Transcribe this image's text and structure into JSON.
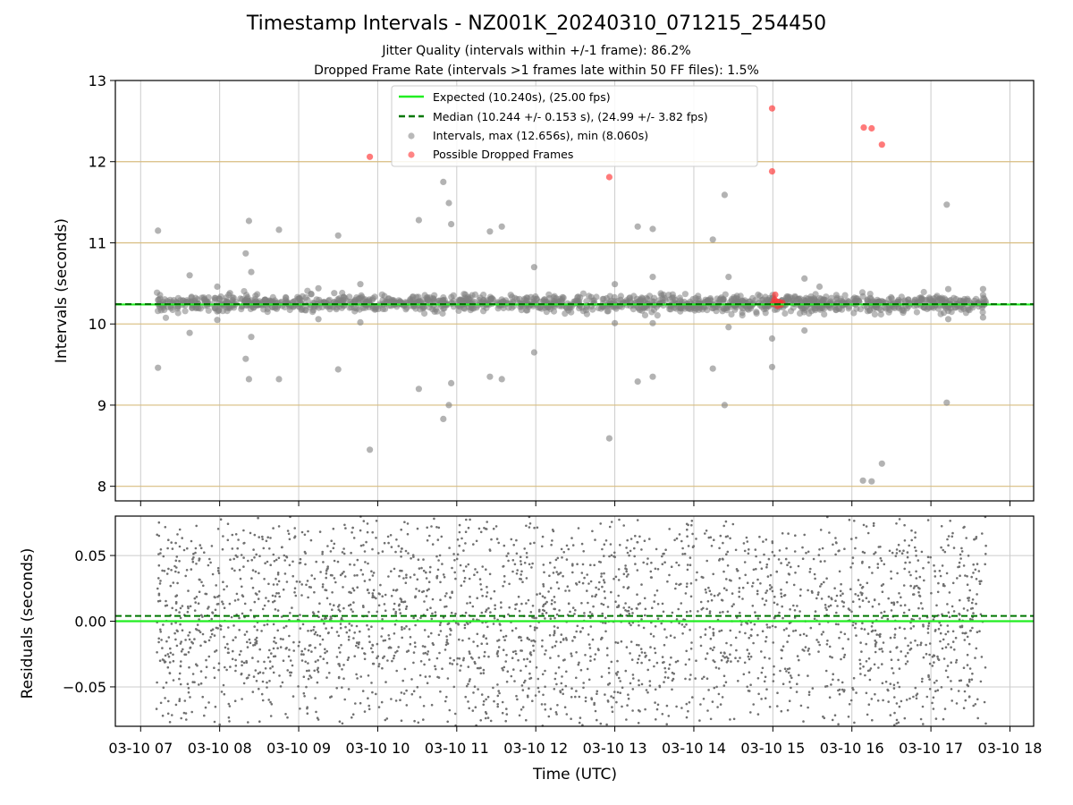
{
  "figure": {
    "title": "Timestamp Intervals - NZ001K_20240310_071215_254450",
    "subtitle_1": "Jitter Quality (intervals within +/-1 frame): 86.2%",
    "subtitle_2": "Dropped Frame Rate (intervals >1 frames late within 50 FF files): 1.5%",
    "xlabel": "Time (UTC)"
  },
  "colors": {
    "expected": "#22ee22",
    "median": "#007700",
    "intervals": "#808080",
    "dropped": "#ff3333",
    "ref_lines": "#d8bd7f",
    "grid": "#cccccc"
  },
  "chart_data": [
    {
      "type": "scatter",
      "panel": "intervals",
      "ylabel": "Intervals (seconds)",
      "ylim": [
        7.82,
        13.0
      ],
      "yticks": [
        "8",
        "9",
        "10",
        "11",
        "12",
        "13"
      ],
      "xlim": [
        6.68,
        18.3
      ],
      "xticks": [
        7,
        8,
        9,
        10,
        11,
        12,
        13,
        14,
        15,
        16,
        17,
        18
      ],
      "xtick_labels": [
        "03-10 07",
        "03-10 08",
        "03-10 09",
        "03-10 10",
        "03-10 11",
        "03-10 12",
        "03-10 13",
        "03-10 14",
        "03-10 15",
        "03-10 16",
        "03-10 17",
        "03-10 18"
      ],
      "x_unit": "hour of 2024-03-10 (UTC)",
      "grid": true,
      "ref_lines_y": [
        8,
        9,
        10,
        11,
        12
      ],
      "expected_interval": 10.24,
      "median_interval": 10.244,
      "legend_position": "top-center",
      "legend": [
        "Expected (10.240s), (25.00 fps)",
        "Median (10.244 +/- 0.153 s), (24.99 +/- 3.82 fps)",
        "Intervals, max (12.656s), min (8.060s)",
        "Possible Dropped Frames"
      ],
      "band": {
        "x_start": 7.2,
        "x_end": 17.7,
        "y_center": 10.25,
        "spread": 0.05
      },
      "outliers": [
        [
          7.22,
          11.15
        ],
        [
          7.22,
          9.46
        ],
        [
          7.62,
          10.6
        ],
        [
          7.62,
          9.89
        ],
        [
          7.97,
          10.46
        ],
        [
          7.97,
          10.05
        ],
        [
          8.13,
          10.38
        ],
        [
          8.33,
          10.87
        ],
        [
          8.33,
          9.57
        ],
        [
          8.37,
          11.27
        ],
        [
          8.37,
          9.32
        ],
        [
          8.4,
          10.64
        ],
        [
          8.4,
          9.84
        ],
        [
          8.75,
          11.16
        ],
        [
          8.75,
          9.32
        ],
        [
          9.25,
          10.44
        ],
        [
          9.25,
          10.06
        ],
        [
          9.5,
          11.09
        ],
        [
          9.5,
          9.44
        ],
        [
          9.45,
          10.38
        ],
        [
          9.78,
          10.49
        ],
        [
          9.78,
          10.02
        ],
        [
          9.9,
          8.45
        ],
        [
          10.52,
          11.28
        ],
        [
          10.52,
          9.2
        ],
        [
          10.83,
          11.75
        ],
        [
          10.83,
          8.83
        ],
        [
          10.9,
          11.49
        ],
        [
          10.9,
          9.0
        ],
        [
          10.93,
          11.23
        ],
        [
          10.93,
          9.27
        ],
        [
          11.42,
          11.14
        ],
        [
          11.42,
          9.35
        ],
        [
          11.57,
          11.2
        ],
        [
          11.57,
          9.32
        ],
        [
          11.98,
          10.7
        ],
        [
          11.98,
          9.65
        ],
        [
          12.93,
          8.59
        ],
        [
          13.0,
          10.49
        ],
        [
          13.0,
          10.01
        ],
        [
          13.29,
          11.2
        ],
        [
          13.29,
          9.29
        ],
        [
          13.48,
          11.17
        ],
        [
          13.48,
          9.35
        ],
        [
          13.48,
          10.58
        ],
        [
          13.48,
          10.01
        ],
        [
          14.24,
          11.04
        ],
        [
          14.24,
          9.45
        ],
        [
          14.39,
          11.59
        ],
        [
          14.39,
          9.0
        ],
        [
          14.44,
          10.58
        ],
        [
          14.44,
          9.96
        ],
        [
          14.99,
          9.82
        ],
        [
          14.99,
          9.47
        ],
        [
          15.4,
          10.56
        ],
        [
          15.4,
          9.92
        ],
        [
          15.59,
          10.46
        ],
        [
          16.14,
          8.07
        ],
        [
          16.25,
          8.06
        ],
        [
          16.38,
          8.28
        ],
        [
          17.2,
          11.47
        ],
        [
          17.2,
          9.03
        ],
        [
          17.22,
          10.43
        ],
        [
          17.22,
          10.06
        ],
        [
          17.66,
          10.43
        ],
        [
          17.66,
          10.08
        ]
      ],
      "dropped_frames": [
        [
          9.9,
          12.06
        ],
        [
          12.93,
          11.81
        ],
        [
          14.99,
          12.656
        ],
        [
          14.99,
          11.88
        ],
        [
          16.15,
          12.42
        ],
        [
          16.25,
          12.41
        ],
        [
          16.38,
          12.21
        ],
        [
          15.0,
          10.25
        ],
        [
          15.02,
          10.3
        ],
        [
          15.03,
          10.36
        ],
        [
          15.04,
          10.28
        ],
        [
          15.06,
          10.22
        ],
        [
          15.08,
          10.27
        ],
        [
          15.1,
          10.24
        ],
        [
          15.12,
          10.26
        ]
      ]
    },
    {
      "type": "scatter",
      "panel": "residuals",
      "ylabel": "Residuals (seconds)",
      "ylim": [
        -0.08,
        0.08
      ],
      "yticks": [
        "−0.05",
        "0.00",
        "0.05"
      ],
      "ytick_values": [
        -0.05,
        0.0,
        0.05
      ],
      "xlim": [
        6.68,
        18.3
      ],
      "grid": true,
      "expected_residual": 0.0,
      "median_residual": 0.004,
      "cloud": {
        "x_start": 7.2,
        "x_end": 17.7,
        "spread": 0.085
      }
    }
  ]
}
